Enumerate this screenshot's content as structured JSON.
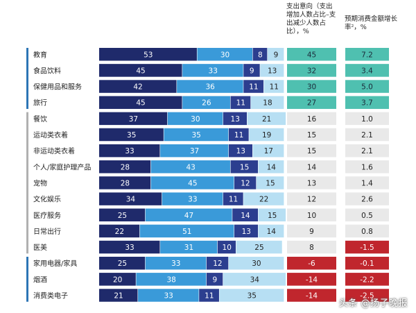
{
  "headers": {
    "spend_intent": "支出意向（支出增加人数占比–支出减少人数占比），%",
    "growth": "预期消费金额增长率²，%"
  },
  "watermark": "头条 @扬子晚报",
  "colors": {
    "seg1": "#1f2a6b",
    "seg2": "#3a9ad9",
    "seg3": "#2c3e8f",
    "seg4": "#b7dff3",
    "group_bar_1": "#2c75b5",
    "group_bar_2": "#b0b0b0",
    "group_bar_3": "#2c75b5",
    "pos_strong": "#4fc0b0",
    "neutral": "#e9e9e9",
    "negative": "#c0262d"
  },
  "chart_data": {
    "type": "table",
    "categories": [
      "教育",
      "食品饮料",
      "保健用品和服务",
      "旅行",
      "餐饮",
      "运动类衣着",
      "非运动类衣着",
      "个人/家庭护理产品",
      "宠物",
      "文化娱乐",
      "医疗服务",
      "日常出行",
      "医美",
      "家用电器/家具",
      "烟酒",
      "消费类电子"
    ],
    "groups": [
      [
        0,
        3
      ],
      [
        4,
        12
      ],
      [
        13,
        15
      ]
    ],
    "series": [
      {
        "values": [
          53,
          45,
          42,
          45,
          37,
          35,
          33,
          28,
          28,
          34,
          25,
          22,
          33,
          25,
          20,
          21
        ]
      },
      {
        "values": [
          30,
          33,
          36,
          26,
          30,
          35,
          37,
          43,
          45,
          33,
          47,
          51,
          31,
          33,
          38,
          33
        ]
      },
      {
        "values": [
          8,
          9,
          11,
          11,
          13,
          11,
          13,
          15,
          12,
          11,
          14,
          13,
          10,
          12,
          9,
          11
        ]
      },
      {
        "values": [
          9,
          13,
          11,
          18,
          21,
          19,
          17,
          14,
          15,
          22,
          15,
          14,
          25,
          30,
          34,
          35
        ]
      }
    ],
    "spend_intent": [
      45,
      32,
      30,
      27,
      16,
      15,
      15,
      14,
      13,
      12,
      10,
      9,
      8,
      -6,
      -14,
      -14
    ],
    "growth": [
      "7.2",
      "3.4",
      "5.0",
      "3.7",
      "1.0",
      "2.1",
      "2.1",
      "1.6",
      "1.4",
      "2.6",
      "0.5",
      "0.8",
      "-1.5",
      "-0.1",
      "-2.2",
      "-2.5"
    ]
  }
}
